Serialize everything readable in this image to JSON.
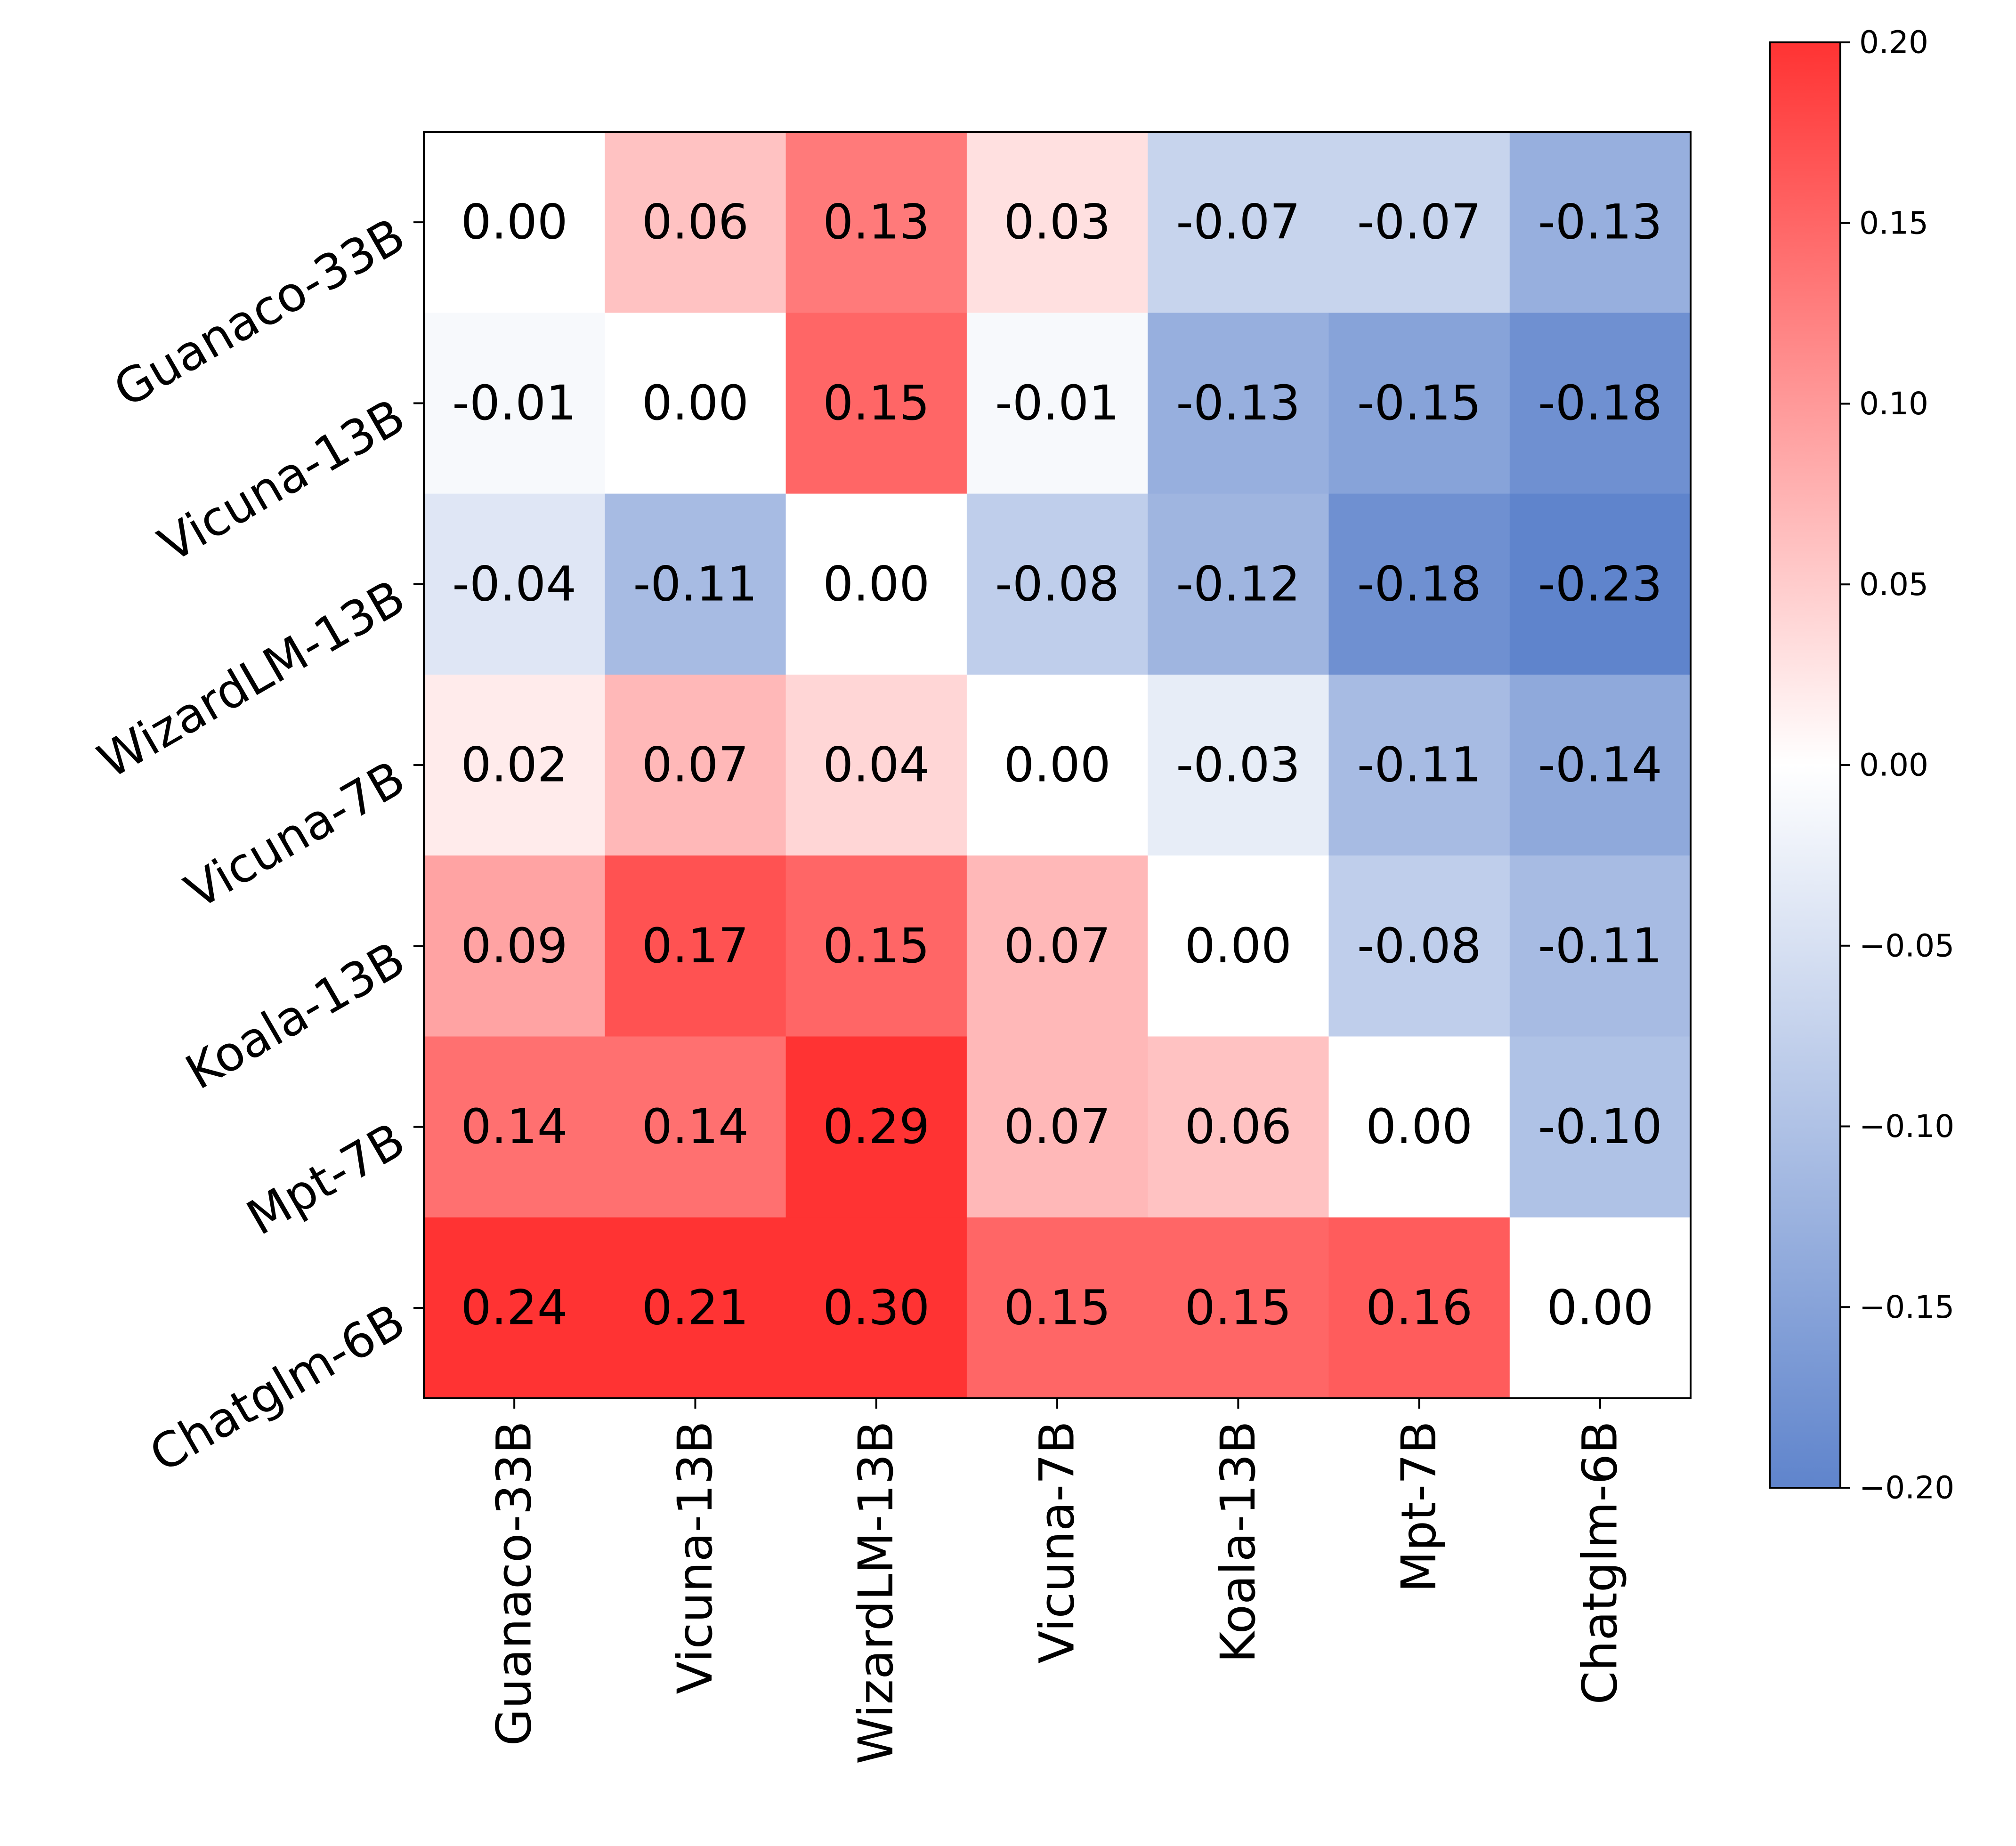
{
  "chart_data": {
    "type": "heatmap",
    "title": "",
    "xlabel": "",
    "ylabel": "",
    "rows": [
      "Guanaco-33B",
      "Vicuna-13B",
      "WizardLM-13B",
      "Vicuna-7B",
      "Koala-13B",
      "Mpt-7B",
      "Chatglm-6B"
    ],
    "columns": [
      "Guanaco-33B",
      "Vicuna-13B",
      "WizardLM-13B",
      "Vicuna-7B",
      "Koala-13B",
      "Mpt-7B",
      "Chatglm-6B"
    ],
    "values": [
      [
        0.0,
        0.06,
        0.13,
        0.03,
        -0.07,
        -0.07,
        -0.13
      ],
      [
        -0.01,
        0.0,
        0.15,
        -0.01,
        -0.13,
        -0.15,
        -0.18
      ],
      [
        -0.04,
        -0.11,
        0.0,
        -0.08,
        -0.12,
        -0.18,
        -0.23
      ],
      [
        0.02,
        0.07,
        0.04,
        0.0,
        -0.03,
        -0.11,
        -0.14
      ],
      [
        0.09,
        0.17,
        0.15,
        0.07,
        0.0,
        -0.08,
        -0.11
      ],
      [
        0.14,
        0.14,
        0.29,
        0.07,
        0.06,
        0.0,
        -0.1
      ],
      [
        0.24,
        0.21,
        0.3,
        0.15,
        0.15,
        0.16,
        0.0
      ]
    ],
    "cell_labels": [
      [
        "0.00",
        "0.06",
        "0.13",
        "0.03",
        "-0.07",
        "-0.07",
        "-0.13"
      ],
      [
        "-0.01",
        "0.00",
        "0.15",
        "-0.01",
        "-0.13",
        "-0.15",
        "-0.18"
      ],
      [
        "-0.04",
        "-0.11",
        "0.00",
        "-0.08",
        "-0.12",
        "-0.18",
        "-0.23"
      ],
      [
        "0.02",
        "0.07",
        "0.04",
        "0.00",
        "-0.03",
        "-0.11",
        "-0.14"
      ],
      [
        "0.09",
        "0.17",
        "0.15",
        "0.07",
        "0.00",
        "-0.08",
        "-0.11"
      ],
      [
        "0.14",
        "0.14",
        "0.29",
        "0.07",
        "0.06",
        "0.00",
        "-0.10"
      ],
      [
        "0.24",
        "0.21",
        "0.30",
        "0.15",
        "0.15",
        "0.16",
        "0.00"
      ]
    ],
    "colorbar": {
      "vmin": -0.2,
      "vmax": 0.2,
      "ticks": [
        0.2,
        0.15,
        0.1,
        0.05,
        0.0,
        -0.05,
        -0.1,
        -0.15,
        -0.2
      ],
      "tick_labels": [
        "0.20",
        "0.15",
        "0.10",
        "0.05",
        "0.00",
        "−0.05",
        "−0.10",
        "−0.15",
        "−0.20"
      ],
      "colors": {
        "low": "#5f84cc",
        "mid": "#ffffff",
        "high": "#ff3333"
      },
      "placement": "right"
    },
    "colors": {
      "text": "#000000",
      "axis": "#000000",
      "background": "#ffffff"
    }
  }
}
